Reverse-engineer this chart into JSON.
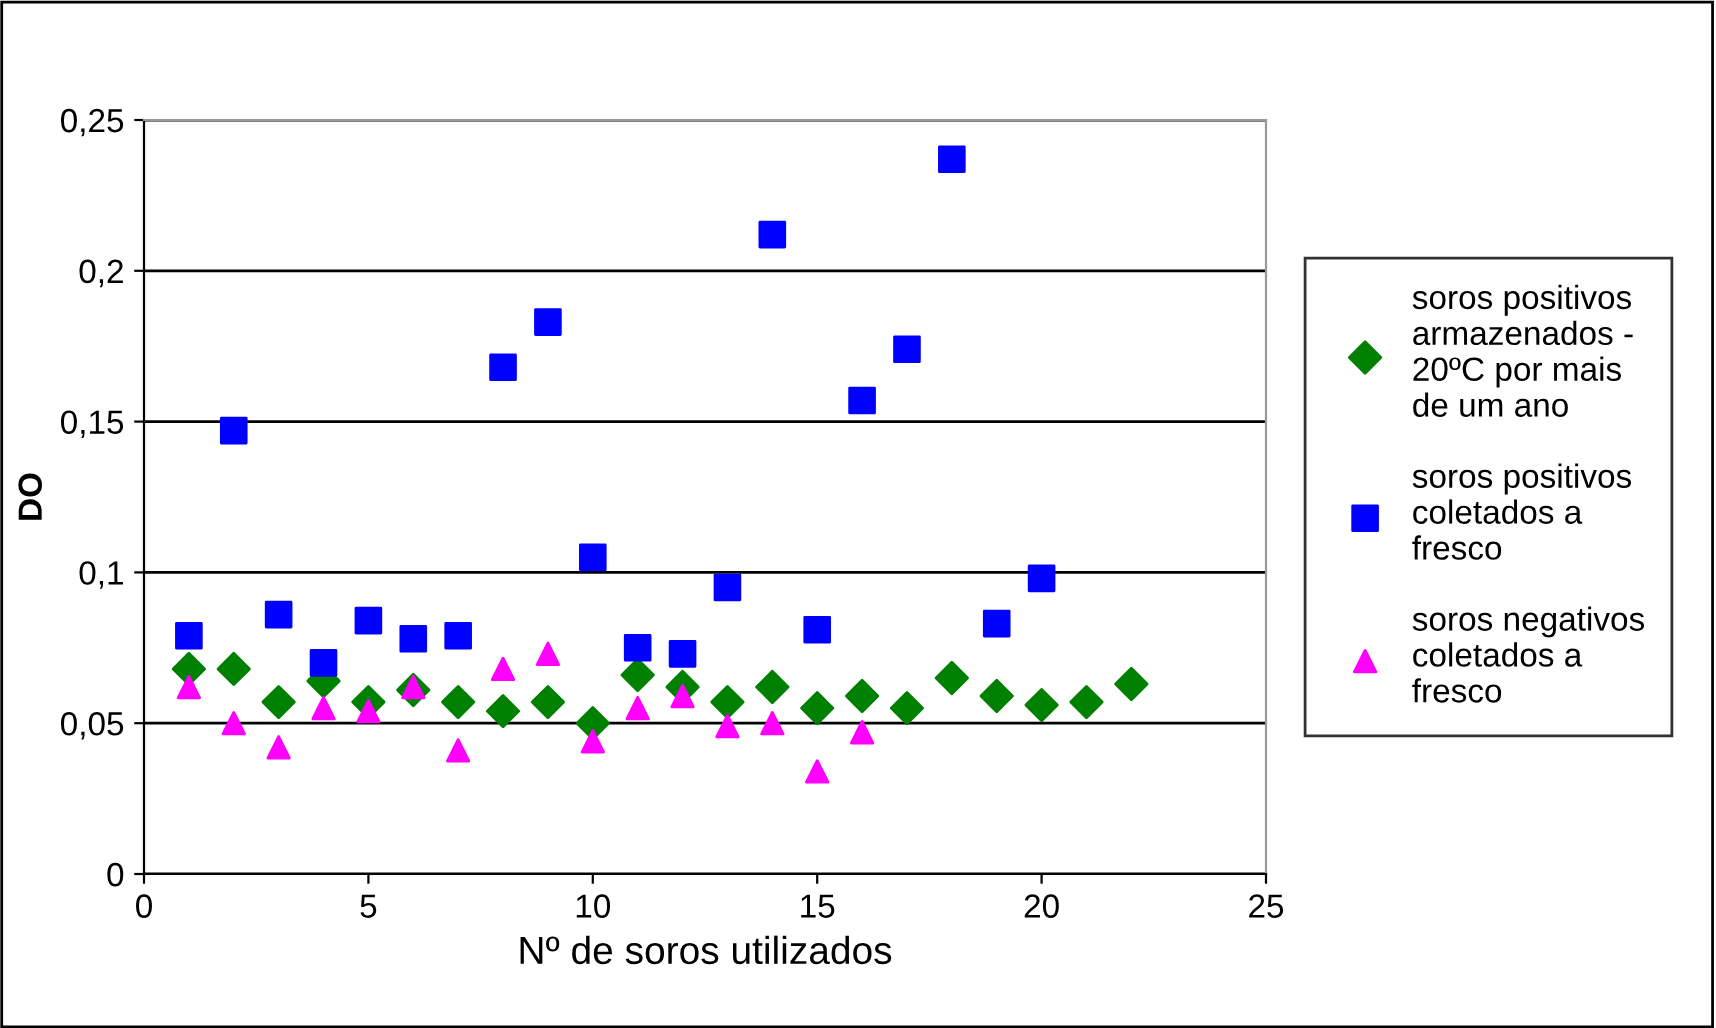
{
  "chart_data": {
    "type": "scatter",
    "xlabel": "Nº de soros utilizados",
    "ylabel": "DO",
    "xlim": [
      0,
      25
    ],
    "xticks": [
      0,
      5,
      10,
      15,
      20,
      25
    ],
    "ylim": [
      0,
      0.25
    ],
    "yticks": [
      0,
      {
        "value": 0.05,
        "label": "0,05"
      },
      {
        "value": 0.1,
        "label": "0,1"
      },
      {
        "value": 0.15,
        "label": "0,15"
      },
      {
        "value": 0.2,
        "label": "0,2"
      },
      {
        "value": 0.25,
        "label": "0,25"
      }
    ],
    "grid": "y",
    "legend": "right",
    "series": [
      {
        "name": "soros positivos armazenados - 20ºC por mais de um ano",
        "color": "#008000",
        "marker": "diamond",
        "x": [
          1,
          2,
          3,
          4,
          5,
          6,
          7,
          8,
          9,
          10,
          11,
          12,
          13,
          14,
          15,
          16,
          17,
          18,
          19,
          20,
          21,
          22
        ],
        "values": [
          0.068,
          0.068,
          0.057,
          0.064,
          0.057,
          0.061,
          0.057,
          0.054,
          0.057,
          0.05,
          0.066,
          0.062,
          0.057,
          0.062,
          0.055,
          0.059,
          0.055,
          0.065,
          0.059,
          0.056,
          0.057,
          0.063
        ]
      },
      {
        "name": "soros positivos coletados a fresco",
        "color": "#0000ff",
        "marker": "square",
        "x": [
          1,
          2,
          3,
          4,
          5,
          6,
          7,
          8,
          9,
          10,
          11,
          12,
          13,
          14,
          15,
          16,
          17,
          18,
          19,
          20
        ],
        "values": [
          0.079,
          0.147,
          0.086,
          0.07,
          0.084,
          0.078,
          0.079,
          0.168,
          0.183,
          0.105,
          0.075,
          0.073,
          0.095,
          0.212,
          0.081,
          0.157,
          0.174,
          0.237,
          0.083,
          0.098
        ]
      },
      {
        "name": "soros negativos coletados a fresco",
        "color": "#ff00ff",
        "marker": "triangle",
        "x": [
          1,
          2,
          3,
          4,
          5,
          6,
          7,
          8,
          9,
          10,
          11,
          12,
          13,
          14,
          15,
          16
        ],
        "values": [
          0.062,
          0.05,
          0.042,
          0.055,
          0.054,
          0.062,
          0.041,
          0.068,
          0.073,
          0.044,
          0.055,
          0.059,
          0.049,
          0.05,
          0.034,
          0.047
        ]
      }
    ]
  }
}
